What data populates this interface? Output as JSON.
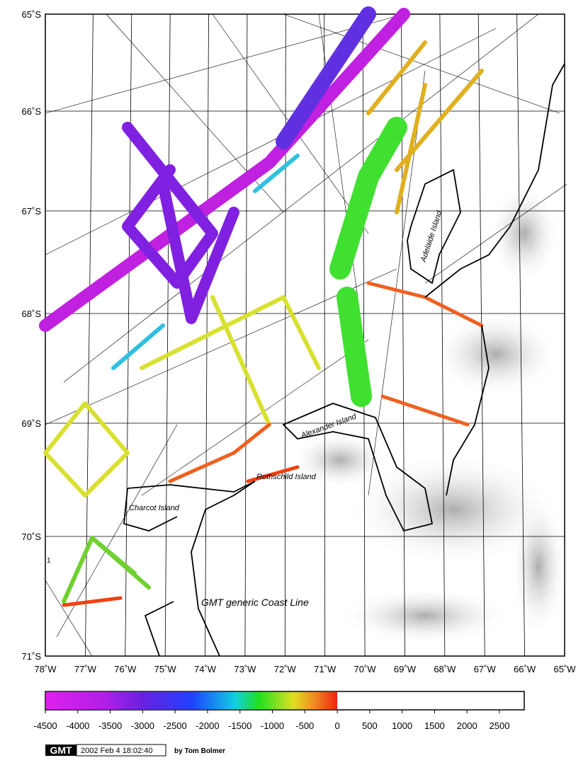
{
  "map": {
    "lat_labels": [
      "65˚S",
      "66˚S",
      "67˚S",
      "68˚S",
      "69˚S",
      "70˚S",
      "71˚S"
    ],
    "lon_labels": [
      "78˚W",
      "77˚W",
      "76˚W",
      "75˚W",
      "74˚W",
      "73˚W",
      "72˚W",
      "71˚W",
      "70˚W",
      "69˚W",
      "68˚W",
      "67˚W",
      "66˚W",
      "65˚W"
    ],
    "places": {
      "adelaide": "Adelaide Island",
      "alexander": "Alexander Island",
      "rothschild": "Rothschild Island",
      "charcot": "Charcot Island",
      "coastline": "GMT generic Coast Line",
      "marker": "1"
    }
  },
  "colorbar": {
    "ticks": [
      -4500,
      -4000,
      -3500,
      -3000,
      -2500,
      -2000,
      -1500,
      -1000,
      -500,
      0,
      500,
      1000,
      1500,
      2000,
      2500
    ]
  },
  "footer": {
    "logo": "GMT",
    "timestamp": "2002 Feb  4 18:02:40",
    "author": "by Tom Bolmer"
  }
}
